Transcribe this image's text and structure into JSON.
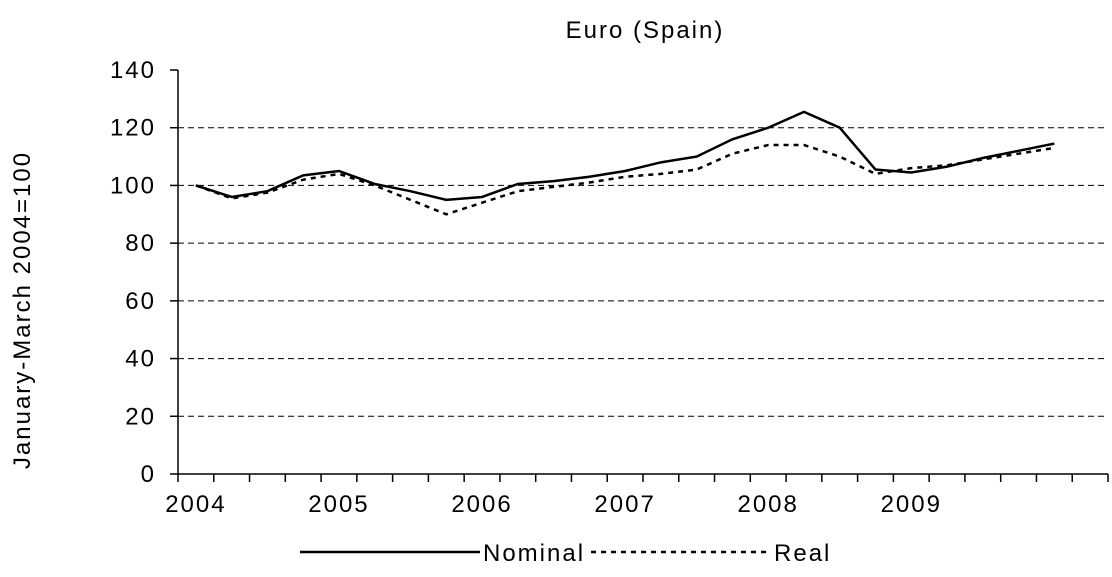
{
  "chart_data": {
    "type": "line",
    "title": "Euro (Spain)",
    "y_label": "January-March 2004=100",
    "categories": [
      "2004",
      null,
      null,
      null,
      "2005",
      null,
      null,
      null,
      "2006",
      null,
      null,
      null,
      "2007",
      null,
      null,
      null,
      "2008",
      null,
      null,
      null,
      "2009",
      null,
      null,
      null,
      null,
      null
    ],
    "series": [
      {
        "name": "Nominal",
        "color": "#000000",
        "dash": "solid",
        "values": [
          100,
          96,
          98,
          103.5,
          105,
          100.5,
          98,
          95,
          96,
          100.5,
          101.5,
          103,
          105,
          108,
          110,
          116,
          120,
          125.5,
          120,
          105.5,
          104.5,
          106.5,
          109.5,
          112,
          114.5,
          null
        ]
      },
      {
        "name": "Real",
        "color": "#000000",
        "dash": "dotted",
        "values": [
          100,
          95.5,
          97.5,
          102,
          104,
          100,
          95,
          90,
          94,
          98,
          99.5,
          101,
          103,
          104,
          105.5,
          111,
          114,
          114,
          110,
          104,
          106,
          107,
          109,
          111,
          113,
          null
        ]
      }
    ],
    "ylim": [
      0,
      140
    ],
    "yticks": [
      0,
      20,
      40,
      60,
      80,
      100,
      120,
      140
    ],
    "grid": true,
    "legend": "bottom"
  }
}
